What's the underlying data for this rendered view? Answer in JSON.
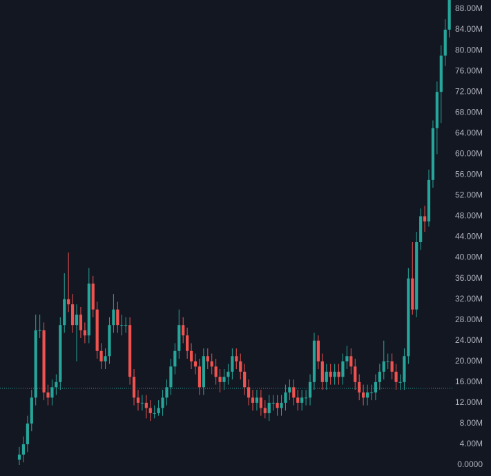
{
  "chart_data": {
    "type": "candlestick",
    "open": [
      1,
      2,
      4,
      8,
      13,
      26,
      26,
      14,
      13,
      15,
      16,
      27,
      32,
      31,
      27,
      29,
      26,
      25,
      35,
      30,
      22,
      20,
      21,
      27,
      30,
      27,
      27,
      27,
      17,
      13,
      12,
      12,
      11,
      10,
      10,
      11,
      13,
      15,
      19,
      22,
      27,
      25,
      22,
      20,
      19,
      15,
      21,
      20,
      19,
      17,
      16,
      17,
      18,
      21,
      20,
      18,
      15,
      13,
      12,
      13,
      11,
      10,
      12,
      12,
      11,
      12,
      14,
      15,
      13,
      12,
      13,
      13,
      16,
      24,
      20,
      16,
      18,
      17,
      18,
      17,
      20,
      21,
      19,
      16,
      14,
      13,
      14,
      14,
      16,
      18,
      20,
      20,
      18,
      16,
      16,
      21,
      36,
      30,
      43,
      48,
      47,
      55,
      65,
      72,
      79,
      84
    ],
    "high": [
      3.5,
      5.5,
      9.5,
      14.5,
      29,
      29,
      27.5,
      15.5,
      16.5,
      17.5,
      28.5,
      37,
      41,
      33,
      31,
      30.5,
      27.5,
      38,
      36.5,
      31.5,
      23.5,
      22.5,
      28.5,
      33,
      31.5,
      29,
      28.5,
      28.5,
      18.5,
      14.5,
      13.5,
      13.5,
      12.5,
      11.5,
      12.5,
      14.5,
      16.5,
      20.5,
      23.5,
      30,
      28.5,
      26.5,
      23.5,
      21.5,
      20.5,
      22.5,
      22.5,
      21.5,
      20.5,
      18.5,
      18.5,
      19.5,
      22.5,
      22.5,
      21.5,
      19.5,
      16.5,
      14.5,
      14.5,
      14.5,
      12.5,
      13.5,
      13.5,
      13.5,
      13.5,
      15.5,
      16.5,
      16.5,
      14.5,
      14.5,
      14.5,
      17.5,
      25.5,
      25,
      21.5,
      19.5,
      19.5,
      19.5,
      19.5,
      21.5,
      23,
      22.5,
      20.5,
      17.5,
      15.5,
      15.5,
      15.5,
      17.5,
      19.5,
      24,
      21.5,
      21.5,
      19.5,
      17.5,
      22.5,
      38,
      43,
      45,
      49.5,
      50,
      57,
      66.5,
      74,
      81,
      86,
      92
    ],
    "low": [
      0,
      0.5,
      2.5,
      6.5,
      11.5,
      24.5,
      12.5,
      11.5,
      11.5,
      13.5,
      14.5,
      25.5,
      29.5,
      25.5,
      20,
      24.5,
      23.5,
      23.5,
      28.5,
      20.5,
      18.5,
      18.5,
      19.5,
      25.5,
      25.5,
      25,
      25.5,
      15.5,
      11.5,
      10.5,
      10.5,
      9,
      8.5,
      9,
      9.5,
      9.5,
      11.5,
      13.5,
      17.5,
      20.5,
      23.5,
      20.5,
      18.5,
      17.5,
      13.5,
      13.5,
      18.5,
      17.5,
      15.5,
      14,
      14.5,
      15.5,
      16.5,
      18.5,
      16.5,
      13.5,
      11.5,
      10.5,
      10.5,
      9.5,
      9,
      8.5,
      10.5,
      9.5,
      9.5,
      10.5,
      12.5,
      11.5,
      10.5,
      10.5,
      11.5,
      11.5,
      14.5,
      18.5,
      14.5,
      14.5,
      15.5,
      15.5,
      15.5,
      15.5,
      18.5,
      17.5,
      14.5,
      12.5,
      11.5,
      11.5,
      12.5,
      12.5,
      14.5,
      16.5,
      18.5,
      16.5,
      14.5,
      14.5,
      14.5,
      19.5,
      29,
      28.5,
      41.5,
      45,
      46,
      53.5,
      60,
      66,
      77,
      82.5
    ],
    "close": [
      2,
      4,
      8,
      13,
      26,
      26,
      14,
      13,
      15,
      16,
      27,
      32,
      31,
      27,
      29,
      26,
      25,
      35,
      30,
      22,
      20,
      21,
      27,
      30,
      27,
      27,
      27,
      17,
      13,
      12,
      12,
      11,
      10,
      10,
      11,
      13,
      15,
      19,
      22,
      27,
      25,
      22,
      20,
      19,
      15,
      21,
      20,
      19,
      17,
      16,
      17,
      18,
      21,
      20,
      18,
      15,
      13,
      12,
      13,
      11,
      10,
      12,
      12,
      11,
      12,
      14,
      15,
      13,
      12,
      13,
      13,
      16,
      24,
      20,
      16,
      18,
      17,
      18,
      17,
      20,
      21,
      19,
      16,
      14,
      13,
      14,
      14,
      16,
      18,
      20,
      20,
      18,
      16,
      16,
      21,
      36,
      30,
      43,
      48,
      47,
      55,
      65,
      72,
      79,
      84,
      90
    ],
    "up_color": "#26a69a",
    "down_color": "#ef5350",
    "price_line": 14.8,
    "ylim": [
      0,
      90
    ],
    "yticks": [
      {
        "value": 0,
        "label": "0.0000"
      },
      {
        "value": 4,
        "label": "4.00M"
      },
      {
        "value": 8,
        "label": "8.00M"
      },
      {
        "value": 12,
        "label": "12.00M"
      },
      {
        "value": 16,
        "label": "16.00M"
      },
      {
        "value": 20,
        "label": "20.00M"
      },
      {
        "value": 24,
        "label": "24.00M"
      },
      {
        "value": 28,
        "label": "28.00M"
      },
      {
        "value": 32,
        "label": "32.00M"
      },
      {
        "value": 36,
        "label": "36.00M"
      },
      {
        "value": 40,
        "label": "40.00M"
      },
      {
        "value": 44,
        "label": "44.00M"
      },
      {
        "value": 48,
        "label": "48.00M"
      },
      {
        "value": 52,
        "label": "52.00M"
      },
      {
        "value": 56,
        "label": "56.00M"
      },
      {
        "value": 60,
        "label": "60.00M"
      },
      {
        "value": 64,
        "label": "64.00M"
      },
      {
        "value": 68,
        "label": "68.00M"
      },
      {
        "value": 72,
        "label": "72.00M"
      },
      {
        "value": 76,
        "label": "76.00M"
      },
      {
        "value": 80,
        "label": "80.00M"
      },
      {
        "value": 84,
        "label": "84.00M"
      },
      {
        "value": 88,
        "label": "88.00M"
      }
    ]
  }
}
